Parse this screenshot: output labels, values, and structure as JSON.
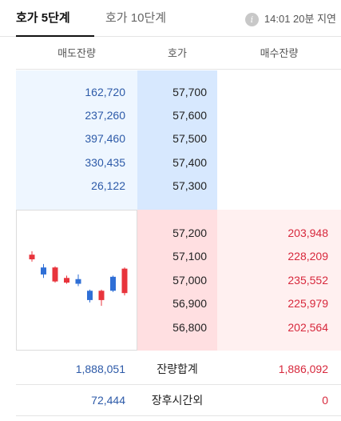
{
  "tabs": {
    "level5": "호가 5단계",
    "level10": "호가 10단계"
  },
  "delay": {
    "icon": "info-icon",
    "icon_glyph": "i",
    "text": "14:01 20분 지연"
  },
  "header": {
    "sell_remain": "매도잔량",
    "price": "호가",
    "buy_remain": "매수잔량"
  },
  "asks": [
    {
      "qty": "162,720",
      "price": "57,700"
    },
    {
      "qty": "237,260",
      "price": "57,600"
    },
    {
      "qty": "397,460",
      "price": "57,500"
    },
    {
      "qty": "330,435",
      "price": "57,400"
    },
    {
      "qty": "26,122",
      "price": "57,300"
    }
  ],
  "bids": [
    {
      "price": "57,200",
      "qty": "203,948"
    },
    {
      "price": "57,100",
      "qty": "228,209"
    },
    {
      "price": "57,000",
      "qty": "235,552"
    },
    {
      "price": "56,900",
      "qty": "225,979"
    },
    {
      "price": "56,800",
      "qty": "202,564"
    }
  ],
  "totals": {
    "sell": "1,888,051",
    "label": "잔량합계",
    "buy": "1,886,092"
  },
  "after_hours": {
    "sell": "72,444",
    "label": "장후시간외",
    "buy": "0"
  },
  "mini_chart": {
    "up_color": "#e8343c",
    "down_color": "#2f6fd6",
    "candles": [
      {
        "dir": "up",
        "open": 57190,
        "close": 57230,
        "high": 57260,
        "low": 57170
      },
      {
        "dir": "down",
        "open": 57120,
        "close": 57060,
        "high": 57150,
        "low": 57030
      },
      {
        "dir": "up",
        "open": 57000,
        "close": 57120,
        "high": 57130,
        "low": 56990
      },
      {
        "dir": "up",
        "open": 56990,
        "close": 57030,
        "high": 57050,
        "low": 56980
      },
      {
        "dir": "down",
        "open": 57020,
        "close": 56980,
        "high": 57060,
        "low": 56960
      },
      {
        "dir": "down",
        "open": 56920,
        "close": 56840,
        "high": 56930,
        "low": 56820
      },
      {
        "dir": "up",
        "open": 56840,
        "close": 56920,
        "high": 56930,
        "low": 56790
      },
      {
        "dir": "down",
        "open": 57040,
        "close": 56920,
        "high": 57050,
        "low": 56910
      },
      {
        "dir": "up",
        "open": 56900,
        "close": 57110,
        "high": 57120,
        "low": 56880
      }
    ]
  }
}
